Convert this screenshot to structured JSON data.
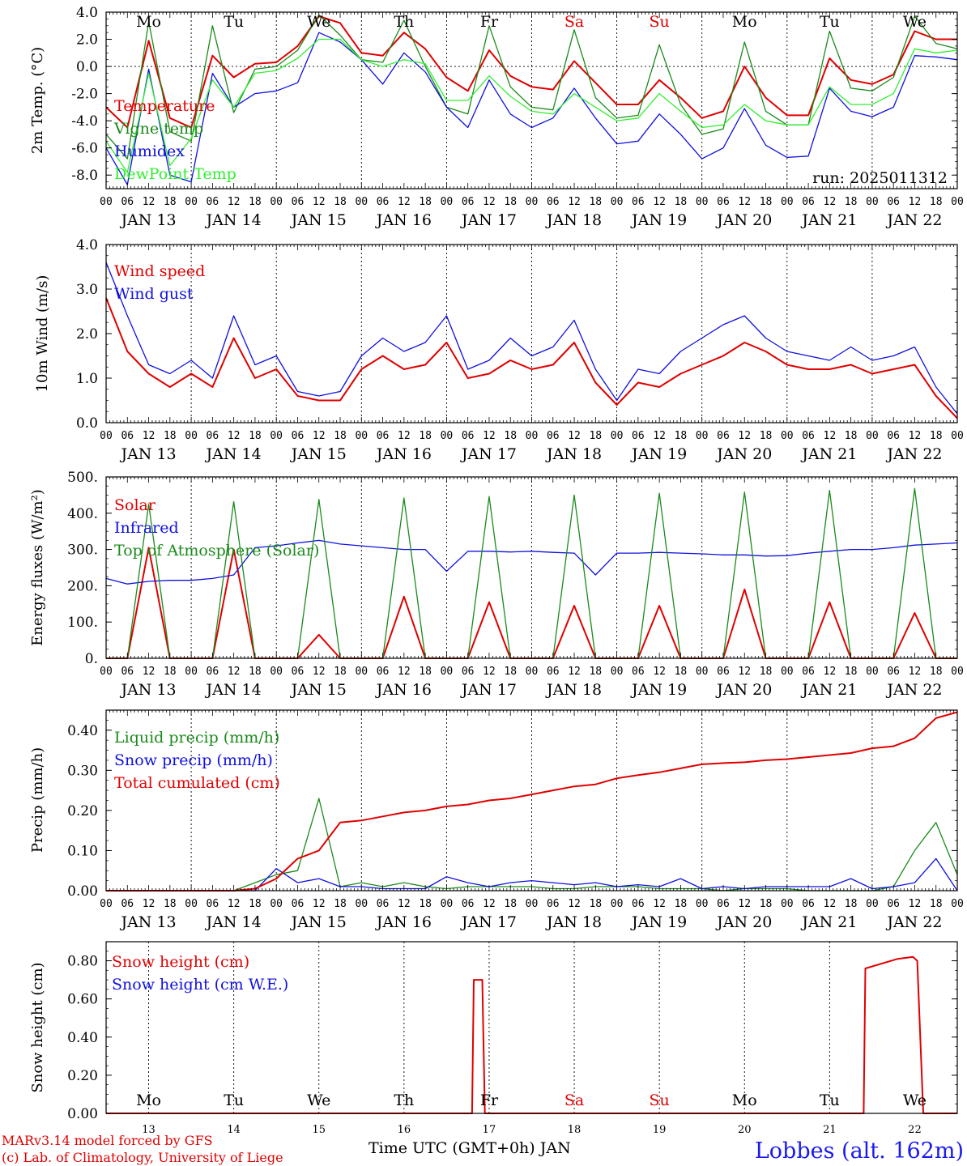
{
  "footer": {
    "model": "MARv3.14 model forced by GFS",
    "lab": "(c) Lab. of Climatology, University of Liege",
    "station": "Lobbes (alt. 162m)",
    "time_axis": "Time UTC (GMT+0h) JAN"
  },
  "colors": {
    "red": "#e00000",
    "green": "#1a8a1a",
    "blue": "#1010e0",
    "lime": "#30f030"
  },
  "days": [
    "Mo",
    "Tu",
    "We",
    "Th",
    "Fr",
    "Sa",
    "Su",
    "Mo",
    "Tu",
    "We"
  ],
  "weekend_days": [
    "Sa",
    "Su"
  ],
  "date_labels": [
    "JAN 13",
    "JAN 14",
    "JAN 15",
    "JAN 16",
    "JAN 17",
    "JAN 18",
    "JAN 19",
    "JAN 20",
    "JAN 21",
    "JAN 22"
  ],
  "day_numbers": [
    "13",
    "14",
    "15",
    "16",
    "17",
    "18",
    "19",
    "20",
    "21",
    "22"
  ],
  "hour_ticks": [
    "00",
    "06",
    "12",
    "18"
  ],
  "chart_data": [
    {
      "type": "line",
      "ylabel": "2m Temp. (°C)",
      "ylim": [
        -9,
        4
      ],
      "yticks": [
        "4.0",
        "2.0",
        "0.0",
        "-2.0",
        "-4.0",
        "-6.0",
        "-8.0"
      ],
      "annotation": "run: 2025011312",
      "x_days": [
        0,
        0.25,
        0.5,
        0.75,
        1,
        1.25,
        1.5,
        1.75,
        2,
        2.25,
        2.5,
        2.75,
        3,
        3.25,
        3.5,
        3.75,
        4,
        4.25,
        4.5,
        4.75,
        5,
        5.25,
        5.5,
        5.75,
        6,
        6.25,
        6.5,
        6.75,
        7,
        7.25,
        7.5,
        7.75,
        8,
        8.25,
        8.5,
        8.75,
        9,
        9.25,
        9.5,
        9.75,
        10
      ],
      "series": [
        {
          "name": "Temperature",
          "color": "red",
          "values": [
            -3.0,
            -4.5,
            1.9,
            -3.8,
            -4.5,
            0.8,
            -0.8,
            0.2,
            0.3,
            1.5,
            3.7,
            3.2,
            1.0,
            0.8,
            2.5,
            1.3,
            -0.8,
            -1.8,
            1.2,
            -0.7,
            -1.5,
            -1.7,
            0.4,
            -1.2,
            -2.8,
            -2.8,
            -1.0,
            -2.3,
            -3.8,
            -3.3,
            0.0,
            -2.3,
            -3.6,
            -3.6,
            0.6,
            -1.0,
            -1.3,
            -0.6,
            2.6,
            2.0,
            2.0
          ]
        },
        {
          "name": "Vigne temp",
          "color": "green",
          "values": [
            -5.0,
            -6.8,
            3.3,
            -4.8,
            -5.5,
            3.0,
            -3.4,
            -0.2,
            0.0,
            1.2,
            3.8,
            2.3,
            0.5,
            0.3,
            3.4,
            0.0,
            -3.0,
            -3.5,
            3.0,
            -1.5,
            -3.0,
            -3.2,
            2.7,
            -2.3,
            -3.8,
            -3.6,
            1.6,
            -2.8,
            -5.0,
            -4.6,
            1.8,
            -3.3,
            -4.3,
            -4.3,
            2.6,
            -1.6,
            -1.8,
            -0.8,
            3.7,
            1.7,
            1.3
          ]
        },
        {
          "name": "Humidex",
          "color": "blue",
          "values": [
            -6.0,
            -8.7,
            -0.2,
            -8.0,
            -8.5,
            -0.5,
            -3.0,
            -2.0,
            -1.8,
            -1.2,
            2.5,
            1.8,
            0.5,
            -1.3,
            1.0,
            -0.4,
            -3.0,
            -4.5,
            -1.0,
            -3.5,
            -4.5,
            -3.8,
            -1.6,
            -3.8,
            -5.7,
            -5.5,
            -3.5,
            -5.0,
            -6.8,
            -6.0,
            -3.1,
            -5.8,
            -6.7,
            -6.6,
            -1.6,
            -3.3,
            -3.7,
            -3.0,
            0.8,
            0.7,
            0.5
          ]
        },
        {
          "name": "DewPoint Temp",
          "color": "lime",
          "values": [
            -5.5,
            -7.8,
            -0.5,
            -7.3,
            -5.3,
            -1.0,
            -3.0,
            -0.5,
            -0.3,
            0.6,
            2.0,
            2.0,
            0.5,
            0.0,
            0.5,
            0.2,
            -2.5,
            -2.5,
            -0.7,
            -2.2,
            -3.3,
            -3.5,
            -2.0,
            -3.0,
            -4.0,
            -3.8,
            -2.0,
            -3.3,
            -4.5,
            -4.3,
            -2.8,
            -4.0,
            -4.3,
            -4.3,
            -1.5,
            -2.8,
            -2.8,
            -2.0,
            1.3,
            1.0,
            1.2
          ]
        }
      ]
    },
    {
      "type": "line",
      "ylabel": "10m Wind (m/s)",
      "ylim": [
        0,
        4
      ],
      "yticks": [
        "4.0",
        "3.0",
        "2.0",
        "1.0",
        "0.0"
      ],
      "x_days": [
        0,
        0.25,
        0.5,
        0.75,
        1,
        1.25,
        1.5,
        1.75,
        2,
        2.25,
        2.5,
        2.75,
        3,
        3.25,
        3.5,
        3.75,
        4,
        4.25,
        4.5,
        4.75,
        5,
        5.25,
        5.5,
        5.75,
        6,
        6.25,
        6.5,
        6.75,
        7,
        7.25,
        7.5,
        7.75,
        8,
        8.25,
        8.5,
        8.75,
        9,
        9.25,
        9.5,
        9.75,
        10
      ],
      "series": [
        {
          "name": "Wind speed",
          "color": "red",
          "values": [
            2.8,
            1.6,
            1.1,
            0.8,
            1.1,
            0.8,
            1.9,
            1.0,
            1.2,
            0.6,
            0.5,
            0.5,
            1.2,
            1.5,
            1.2,
            1.3,
            1.8,
            1.0,
            1.1,
            1.4,
            1.2,
            1.3,
            1.8,
            0.9,
            0.4,
            0.9,
            0.8,
            1.1,
            1.3,
            1.5,
            1.8,
            1.6,
            1.3,
            1.2,
            1.2,
            1.3,
            1.1,
            1.2,
            1.3,
            0.6,
            0.1
          ]
        },
        {
          "name": "Wind gust",
          "color": "blue",
          "values": [
            3.6,
            2.4,
            1.3,
            1.1,
            1.4,
            1.0,
            2.4,
            1.3,
            1.5,
            0.7,
            0.6,
            0.7,
            1.5,
            1.9,
            1.6,
            1.8,
            2.4,
            1.2,
            1.4,
            1.9,
            1.5,
            1.7,
            2.3,
            1.2,
            0.5,
            1.2,
            1.1,
            1.6,
            1.9,
            2.2,
            2.4,
            1.9,
            1.6,
            1.5,
            1.4,
            1.7,
            1.4,
            1.5,
            1.7,
            0.8,
            0.2
          ]
        }
      ]
    },
    {
      "type": "line",
      "ylabel": "Energy fluxes (W/m²)",
      "ylim": [
        0,
        500
      ],
      "yticks": [
        "500.",
        "400.",
        "300.",
        "200.",
        "100.",
        "0."
      ],
      "x_days": [
        0,
        0.25,
        0.5,
        0.75,
        1,
        1.25,
        1.5,
        1.75,
        2,
        2.25,
        2.5,
        2.75,
        3,
        3.25,
        3.5,
        3.75,
        4,
        4.25,
        4.5,
        4.75,
        5,
        5.25,
        5.5,
        5.75,
        6,
        6.25,
        6.5,
        6.75,
        7,
        7.25,
        7.5,
        7.75,
        8,
        8.25,
        8.5,
        8.75,
        9,
        9.25,
        9.5,
        9.75,
        10
      ],
      "series": [
        {
          "name": "Solar",
          "color": "red",
          "values": [
            0,
            0,
            305,
            0,
            0,
            0,
            300,
            0,
            0,
            0,
            65,
            0,
            0,
            0,
            170,
            0,
            0,
            0,
            155,
            0,
            0,
            0,
            145,
            0,
            0,
            0,
            145,
            0,
            0,
            0,
            190,
            0,
            0,
            0,
            155,
            0,
            0,
            0,
            125,
            0,
            0
          ]
        },
        {
          "name": "Infrared",
          "color": "blue",
          "values": [
            220,
            205,
            212,
            215,
            215,
            220,
            230,
            305,
            310,
            318,
            325,
            315,
            310,
            305,
            300,
            300,
            240,
            295,
            295,
            293,
            295,
            292,
            290,
            230,
            290,
            290,
            292,
            290,
            288,
            285,
            285,
            282,
            283,
            290,
            295,
            300,
            300,
            305,
            312,
            315,
            318
          ]
        },
        {
          "name": "Top of Atmosphere (Solar)",
          "color": "green",
          "values": [
            0,
            0,
            425,
            0,
            0,
            0,
            432,
            0,
            0,
            0,
            438,
            0,
            0,
            0,
            442,
            0,
            0,
            0,
            446,
            0,
            0,
            0,
            450,
            0,
            0,
            0,
            455,
            0,
            0,
            0,
            458,
            0,
            0,
            0,
            463,
            0,
            0,
            0,
            468,
            0,
            0
          ]
        }
      ]
    },
    {
      "type": "line",
      "ylabel": "Precip (mm/h)",
      "ylim": [
        0,
        0.45
      ],
      "yticks": [
        "0.40",
        "0.30",
        "0.20",
        "0.10",
        "0.00"
      ],
      "x_days": [
        0,
        0.25,
        0.5,
        0.75,
        1,
        1.25,
        1.5,
        1.75,
        2,
        2.25,
        2.5,
        2.75,
        3,
        3.25,
        3.5,
        3.75,
        4,
        4.25,
        4.5,
        4.75,
        5,
        5.25,
        5.5,
        5.75,
        6,
        6.25,
        6.5,
        6.75,
        7,
        7.25,
        7.5,
        7.75,
        8,
        8.25,
        8.5,
        8.75,
        9,
        9.25,
        9.5,
        9.75,
        10
      ],
      "series": [
        {
          "name": "Liquid precip (mm/h)",
          "color": "green",
          "values": [
            0,
            0,
            0,
            0,
            0,
            0,
            0,
            0.02,
            0.04,
            0.05,
            0.23,
            0.01,
            0.02,
            0.01,
            0.02,
            0.01,
            0.005,
            0.01,
            0.01,
            0.01,
            0.01,
            0.005,
            0.005,
            0.01,
            0.01,
            0.01,
            0.005,
            0.005,
            0.005,
            0,
            0.005,
            0.005,
            0.005,
            0,
            0,
            0,
            0,
            0.01,
            0.1,
            0.17,
            0.04
          ]
        },
        {
          "name": "Snow precip (mm/h)",
          "color": "blue",
          "values": [
            0,
            0,
            0,
            0,
            0,
            0,
            0,
            0,
            0.055,
            0.02,
            0.03,
            0.01,
            0.01,
            0.005,
            0.005,
            0.005,
            0.035,
            0.02,
            0.01,
            0.02,
            0.025,
            0.02,
            0.015,
            0.02,
            0.01,
            0.015,
            0.01,
            0.03,
            0.005,
            0.01,
            0.005,
            0.01,
            0.01,
            0.01,
            0.01,
            0.03,
            0.005,
            0.01,
            0.02,
            0.08,
            0
          ]
        },
        {
          "name": "Total cumulated (cm)",
          "color": "red",
          "values": [
            0,
            0,
            0,
            0,
            0,
            0,
            0,
            0.005,
            0.03,
            0.08,
            0.1,
            0.17,
            0.175,
            0.185,
            0.195,
            0.2,
            0.21,
            0.215,
            0.225,
            0.23,
            0.24,
            0.25,
            0.26,
            0.265,
            0.28,
            0.288,
            0.295,
            0.305,
            0.315,
            0.318,
            0.32,
            0.325,
            0.328,
            0.333,
            0.338,
            0.343,
            0.355,
            0.36,
            0.38,
            0.43,
            0.445
          ]
        }
      ]
    },
    {
      "type": "line",
      "ylabel": "Snow height (cm)",
      "ylim": [
        0,
        0.9
      ],
      "yticks": [
        "0.80",
        "0.60",
        "0.40",
        "0.20",
        "0.00"
      ],
      "series": [
        {
          "name": "Snow height (cm)",
          "color": "red",
          "x_days": [
            0,
            4.3,
            4.32,
            4.42,
            4.45,
            8.9,
            8.92,
            9.3,
            9.48,
            9.53,
            9.6,
            12.0
          ],
          "values": [
            0,
            0,
            0.7,
            0.7,
            0,
            0,
            0.76,
            0.81,
            0.82,
            0.8,
            0,
            0
          ]
        },
        {
          "name": "Snow height (cm W.E.)",
          "color": "blue",
          "x_days": [],
          "values": []
        }
      ]
    }
  ]
}
